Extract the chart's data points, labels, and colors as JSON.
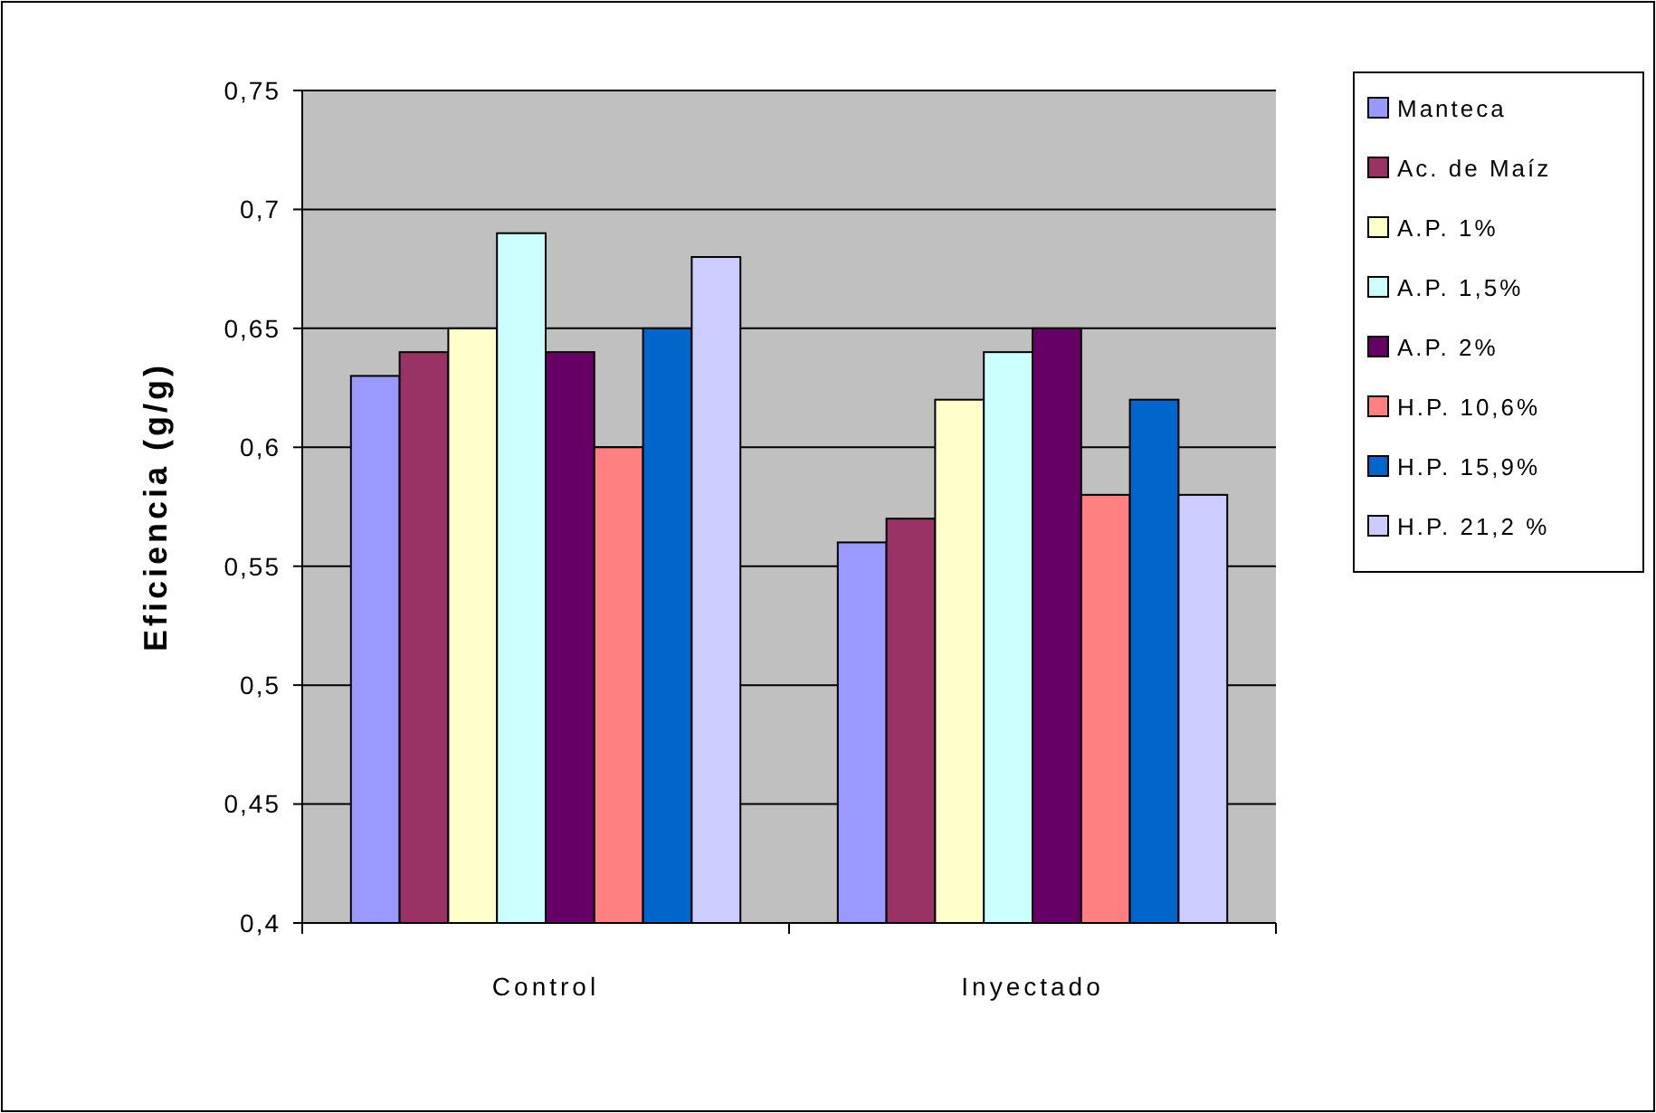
{
  "chart_data": {
    "type": "bar",
    "ylabel": "Eficiencia (g/g)",
    "categories": [
      "Control",
      "Inyectado"
    ],
    "series": [
      {
        "name": "Manteca",
        "color": "#9999ff",
        "values": [
          0.63,
          0.56
        ]
      },
      {
        "name": "Ac. de Maíz",
        "color": "#993366",
        "values": [
          0.64,
          0.57
        ]
      },
      {
        "name": "A.P. 1%",
        "color": "#ffffcc",
        "values": [
          0.65,
          0.62
        ]
      },
      {
        "name": "A.P. 1,5%",
        "color": "#ccffff",
        "values": [
          0.69,
          0.64
        ]
      },
      {
        "name": "A.P. 2%",
        "color": "#660066",
        "values": [
          0.64,
          0.65
        ]
      },
      {
        "name": "H.P. 10,6%",
        "color": "#ff8080",
        "values": [
          0.6,
          0.58
        ]
      },
      {
        "name": "H.P. 15,9%",
        "color": "#0066cc",
        "values": [
          0.65,
          0.62
        ]
      },
      {
        "name": "H.P. 21,2 %",
        "color": "#ccccff",
        "values": [
          0.68,
          0.58
        ]
      }
    ],
    "ylim": [
      0.4,
      0.75
    ],
    "yticks": [
      {
        "value": 0.4,
        "label": "0,4"
      },
      {
        "value": 0.45,
        "label": "0,45"
      },
      {
        "value": 0.5,
        "label": "0,5"
      },
      {
        "value": 0.55,
        "label": "0,55"
      },
      {
        "value": 0.6,
        "label": "0,6"
      },
      {
        "value": 0.65,
        "label": "0,65"
      },
      {
        "value": 0.7,
        "label": "0,7"
      },
      {
        "value": 0.75,
        "label": "0,75"
      }
    ],
    "grid": "y",
    "legend": "right"
  }
}
